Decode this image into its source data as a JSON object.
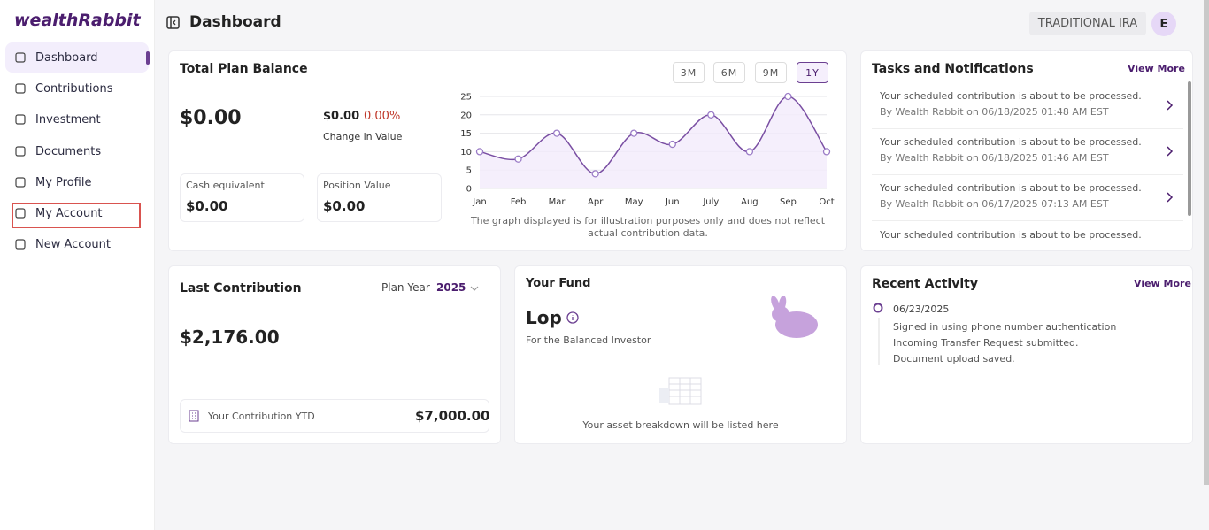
{
  "sidebar": {
    "logo": "wealthRabbit",
    "nav": [
      "Dashboard",
      "Contributions",
      "Investment",
      "Documents",
      "My Profile",
      "My Account",
      "New Account"
    ]
  },
  "header": {
    "title": "Dashboard",
    "account_type": "TRADITIONAL IRA",
    "avatar": "E"
  },
  "plan_balance": {
    "title": "Total Plan Balance",
    "balance": "$0.00",
    "change_amount": "$0.00",
    "change_percent": "0.00%",
    "change_label": "Change in Value",
    "cash_label": "Cash equivalent",
    "cash_value": "$0.00",
    "position_label": "Position Value",
    "position_value": "$0.00",
    "ranges": [
      "3M",
      "6M",
      "9M",
      "1Y"
    ],
    "note": "The graph displayed is for illustration purposes only and does not reflect actual contribution data."
  },
  "chart_data": {
    "type": "line",
    "categories": [
      "Jan",
      "Feb",
      "Mar",
      "Apr",
      "May",
      "Jun",
      "July",
      "Aug",
      "Sep",
      "Oct"
    ],
    "values": [
      10,
      8,
      15,
      4,
      15,
      12,
      20,
      10,
      25,
      10
    ],
    "color": "#7a4fa3",
    "ylim": [
      0,
      25
    ],
    "yticks": [
      0,
      5,
      10,
      15,
      20,
      25
    ],
    "grid": true
  },
  "tasks": {
    "title": "Tasks and Notifications",
    "view_more": "View More",
    "items": [
      {
        "message": "Your scheduled contribution is about to be processed.",
        "meta": "By Wealth Rabbit on 06/18/2025 01:48 AM EST"
      },
      {
        "message": "Your scheduled contribution is about to be processed.",
        "meta": "By Wealth Rabbit on 06/18/2025 01:46 AM EST"
      },
      {
        "message": "Your scheduled contribution is about to be processed.",
        "meta": "By Wealth Rabbit on 06/17/2025 07:13 AM EST"
      },
      {
        "message": "Your scheduled contribution is about to be processed."
      }
    ]
  },
  "last_contribution": {
    "title": "Last Contribution",
    "plan_year_label": "Plan Year",
    "plan_year": "2025",
    "amount": "$2,176.00",
    "ytd_label": "Your Contribution YTD",
    "ytd_value": "$7,000.00"
  },
  "fund": {
    "title": "Your Fund",
    "name": "Lop",
    "subtitle": "For the Balanced Investor",
    "empty": "Your asset breakdown will be listed here"
  },
  "activity": {
    "title": "Recent Activity",
    "view_more": "View More",
    "date": "06/23/2025",
    "entries": [
      "Signed in using phone number authentication",
      "Incoming Transfer Request submitted.",
      "Document upload saved."
    ]
  }
}
